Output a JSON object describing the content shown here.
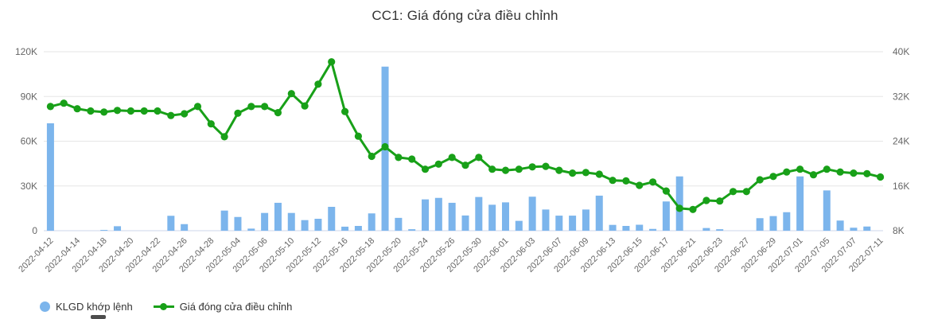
{
  "chart_data": {
    "type": "combo-bar-line",
    "title": "CC1: Giá đóng cửa điều chỉnh",
    "grid": "horizontal",
    "legend_position": "bottom-left",
    "x_label_step": 2,
    "categories": [
      "2022-04-12",
      "2022-04-13",
      "2022-04-14",
      "2022-04-15",
      "2022-04-18",
      "2022-04-19",
      "2022-04-20",
      "2022-04-21",
      "2022-04-22",
      "2022-04-25",
      "2022-04-26",
      "2022-04-27",
      "2022-04-28",
      "2022-04-29",
      "2022-05-04",
      "2022-05-05",
      "2022-05-06",
      "2022-05-09",
      "2022-05-10",
      "2022-05-11",
      "2022-05-12",
      "2022-05-13",
      "2022-05-16",
      "2022-05-17",
      "2022-05-18",
      "2022-05-19",
      "2022-05-20",
      "2022-05-23",
      "2022-05-24",
      "2022-05-25",
      "2022-05-26",
      "2022-05-27",
      "2022-05-30",
      "2022-05-31",
      "2022-06-01",
      "2022-06-02",
      "2022-06-03",
      "2022-06-06",
      "2022-06-07",
      "2022-06-08",
      "2022-06-09",
      "2022-06-10",
      "2022-06-13",
      "2022-06-14",
      "2022-06-15",
      "2022-06-16",
      "2022-06-17",
      "2022-06-20",
      "2022-06-21",
      "2022-06-22",
      "2022-06-23",
      "2022-06-24",
      "2022-06-27",
      "2022-06-28",
      "2022-06-29",
      "2022-06-30",
      "2022-07-01",
      "2022-07-04",
      "2022-07-05",
      "2022-07-06",
      "2022-07-07",
      "2022-07-08",
      "2022-07-11"
    ],
    "series": [
      {
        "name": "KLGD khớp lệnh",
        "type": "bar",
        "axis": "left",
        "color": "#7cb5ec",
        "values": [
          72000,
          0,
          0,
          0,
          500,
          3000,
          0,
          0,
          0,
          10000,
          4400,
          0,
          0,
          13500,
          9200,
          1400,
          11900,
          18700,
          11900,
          7100,
          8000,
          16000,
          2700,
          3200,
          11600,
          110000,
          8600,
          1000,
          21000,
          22000,
          18700,
          10200,
          22600,
          17400,
          19000,
          6600,
          22800,
          14200,
          10100,
          10100,
          14200,
          23500,
          3900,
          3200,
          4000,
          1200,
          19600,
          36400,
          0,
          1800,
          1000,
          0,
          0,
          8400,
          9800,
          12400,
          36400,
          0,
          27000,
          6800,
          2000,
          2800,
          0
        ]
      },
      {
        "name": "Giá đóng cửa điều chỉnh",
        "type": "line",
        "axis": "right",
        "color": "#18a018",
        "values": [
          30200,
          30800,
          29800,
          29400,
          29200,
          29500,
          29400,
          29400,
          29400,
          28600,
          28900,
          30200,
          27100,
          24800,
          29000,
          30200,
          30200,
          29100,
          32500,
          30300,
          34200,
          38200,
          29300,
          24900,
          21300,
          23000,
          21100,
          20800,
          19000,
          19900,
          21100,
          19700,
          21100,
          19000,
          18800,
          19000,
          19400,
          19500,
          18800,
          18300,
          18400,
          18100,
          17000,
          16900,
          16100,
          16700,
          15100,
          12000,
          11800,
          13400,
          13300,
          15000,
          15000,
          17100,
          17700,
          18500,
          19000,
          18000,
          19000,
          18500,
          18300,
          18200,
          17600
        ]
      }
    ],
    "y_left": {
      "min": 0,
      "max": 120000,
      "tick_values": [
        0,
        30000,
        60000,
        90000,
        120000
      ],
      "tick_labels": [
        "0",
        "30K",
        "60K",
        "90K",
        "120K"
      ]
    },
    "y_right": {
      "min": 8000,
      "max": 40000,
      "tick_values": [
        8000,
        16000,
        24000,
        32000,
        40000
      ],
      "tick_labels": [
        "8K",
        "16K",
        "24K",
        "32K",
        "40K"
      ]
    }
  },
  "style_colors": {
    "grid_line": "#e6e6e6",
    "axis_line": "#ccd6eb",
    "axis_label": "#666666",
    "title_text": "#333333",
    "legend_text": "#333333"
  }
}
